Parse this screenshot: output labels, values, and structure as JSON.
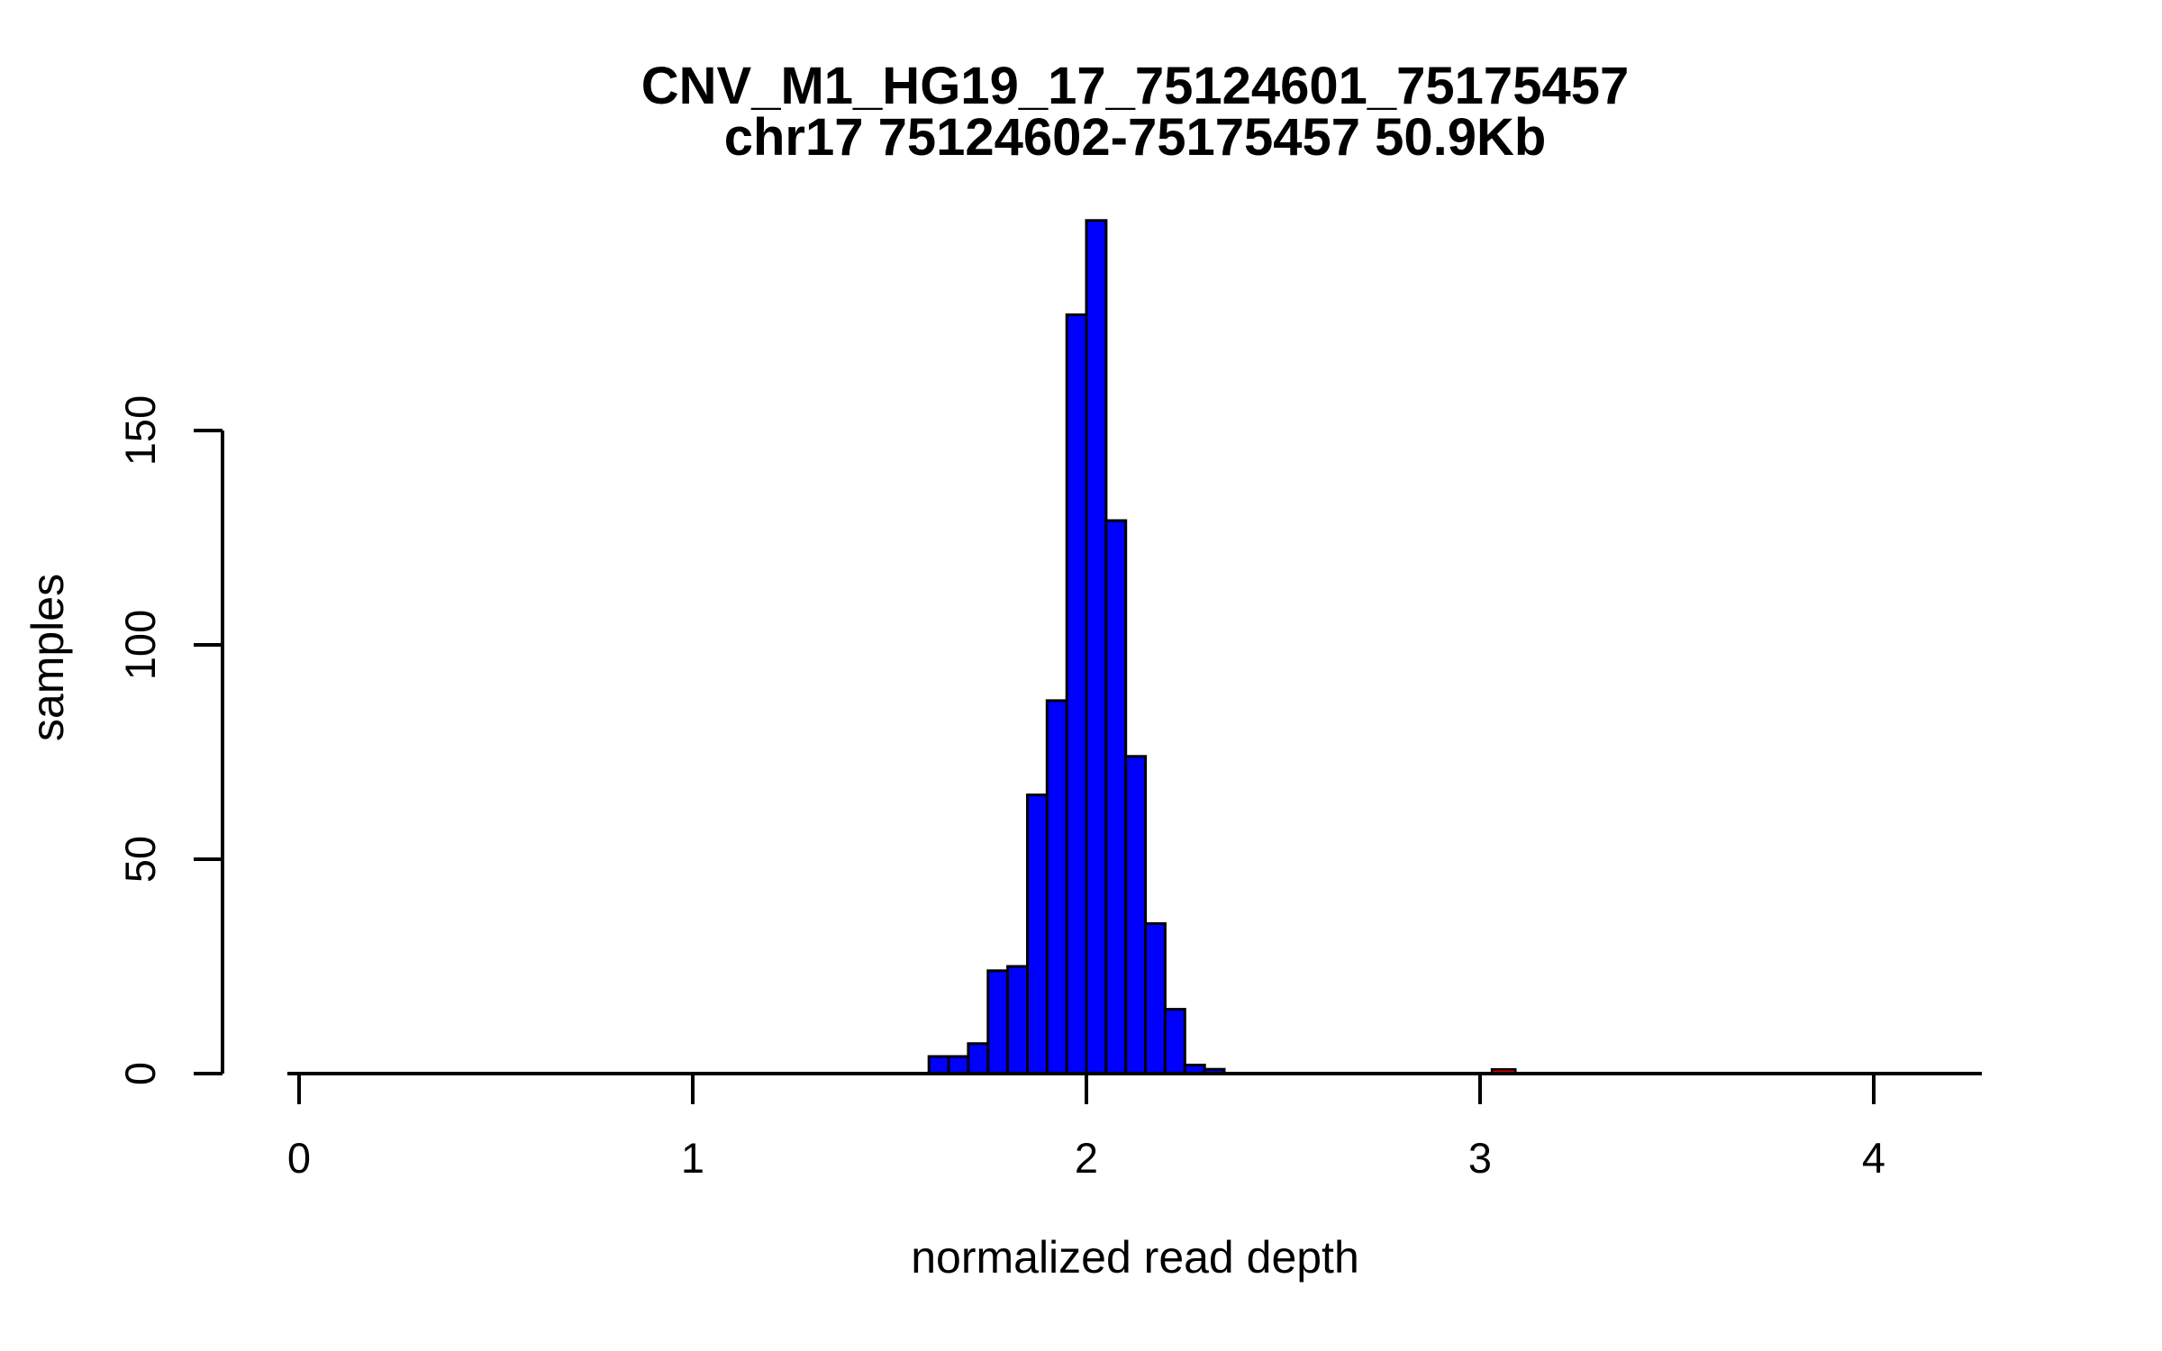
{
  "chart_data": {
    "type": "bar",
    "subtype": "histogram",
    "title_line1": "CNV_M1_HG19_17_75124601_75175457",
    "title_line2": "chr17 75124602-75175457 50.9Kb",
    "xlabel": "normalized read depth",
    "ylabel": "samples",
    "x_ticks": [
      0,
      1,
      2,
      3,
      4
    ],
    "y_ticks": [
      0,
      50,
      100,
      150
    ],
    "xlim": [
      -0.03,
      4.27
    ],
    "ylim": [
      0,
      199
    ],
    "grid": false,
    "legend": false,
    "bin_width": 0.05,
    "bin_starts": [
      1.6,
      1.65,
      1.7,
      1.75,
      1.8,
      1.85,
      1.9,
      1.95,
      2.0,
      2.05,
      2.1,
      2.15,
      2.2,
      2.25,
      2.3
    ],
    "counts": [
      4,
      4,
      7,
      24,
      25,
      65,
      87,
      177,
      199,
      129,
      74,
      35,
      15,
      2,
      1
    ],
    "highlight_bar": {
      "x_start": 3.03,
      "x_end": 3.09,
      "count": 1
    },
    "colors": {
      "bar_fill": "#0000ff",
      "bar_border": "#000000",
      "highlight_fill": "#dd0000",
      "highlight_border": "#000000",
      "axis": "#000000",
      "text": "#000000",
      "background": "#ffffff"
    }
  }
}
